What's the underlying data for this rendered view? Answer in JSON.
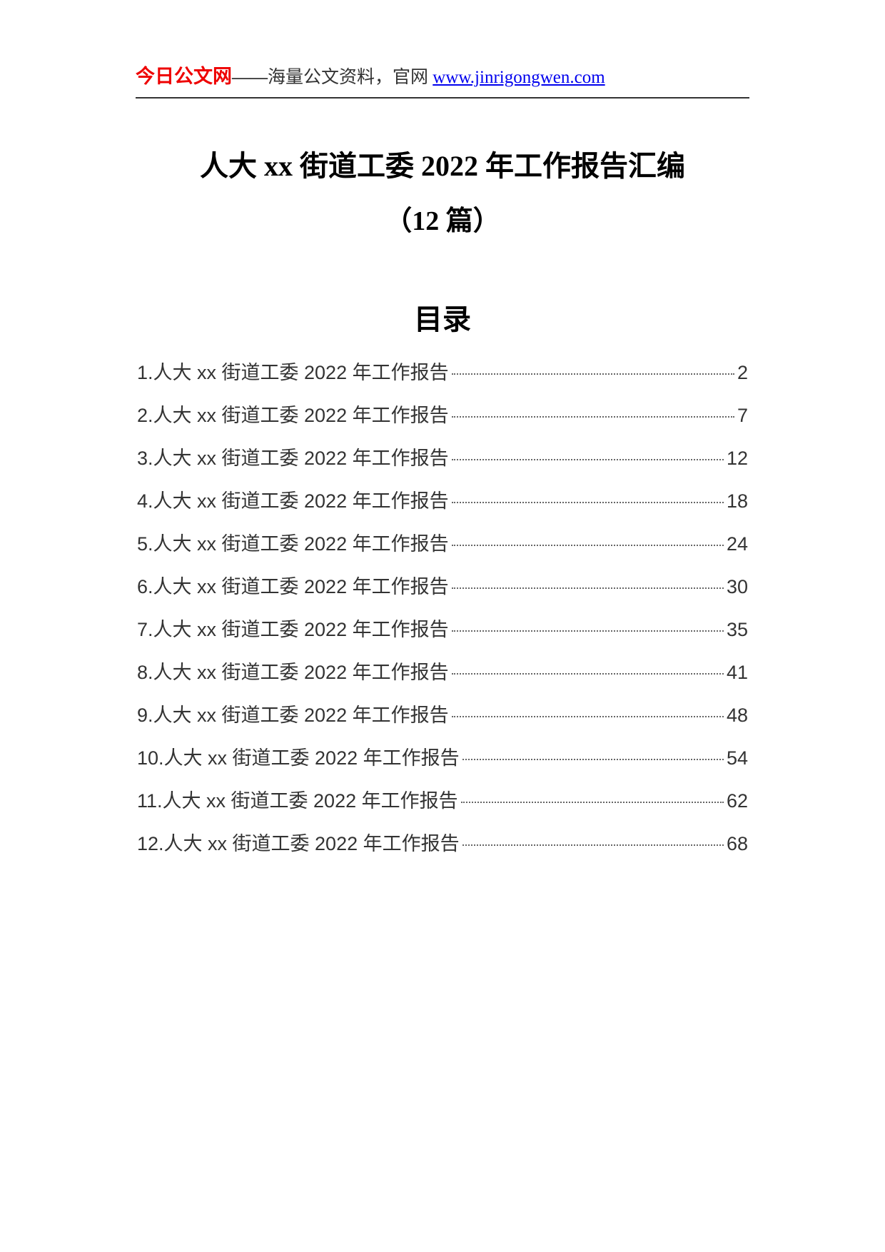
{
  "header": {
    "site_name": "今日公文网",
    "dash": "——",
    "description": "海量公文资料，官网 ",
    "url": "www.jinrigongwen.com"
  },
  "title": {
    "main": "人大 xx 街道工委 2022 年工作报告汇编",
    "sub": "（12 篇）"
  },
  "toc": {
    "heading": "目录",
    "items": [
      {
        "text": "1.人大 xx 街道工委 2022 年工作报告 ",
        "page": " 2"
      },
      {
        "text": "2.人大 xx 街道工委 2022 年工作报告 ",
        "page": " 7"
      },
      {
        "text": "3.人大 xx 街道工委 2022 年工作报告 ",
        "page": "12"
      },
      {
        "text": "4.人大 xx 街道工委 2022 年工作报告 ",
        "page": "18"
      },
      {
        "text": "5.人大 xx 街道工委 2022 年工作报告 ",
        "page": "24"
      },
      {
        "text": "6.人大 xx 街道工委 2022 年工作报告 ",
        "page": "30"
      },
      {
        "text": "7.人大 xx 街道工委 2022 年工作报告 ",
        "page": "35"
      },
      {
        "text": "8.人大 xx 街道工委 2022 年工作报告 ",
        "page": "41"
      },
      {
        "text": "9.人大 xx 街道工委 2022 年工作报告 ",
        "page": "48"
      },
      {
        "text": "10.人大 xx 街道工委 2022 年工作报告",
        "page": "54"
      },
      {
        "text": "11.人大 xx 街道工委 2022 年工作报告",
        "page": "62"
      },
      {
        "text": "12.人大 xx 街道工委 2022 年工作报告",
        "page": "68"
      }
    ]
  },
  "colors": {
    "site_name": "#ee0000",
    "url": "#0000ee",
    "text": "#333333",
    "title": "#000000",
    "background": "#ffffff",
    "border": "#333333"
  }
}
